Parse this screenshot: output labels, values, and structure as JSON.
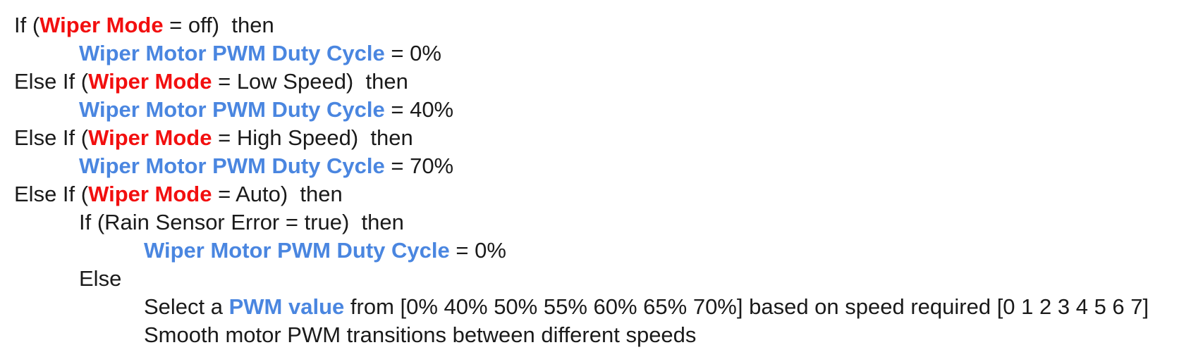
{
  "colors": {
    "wiper_mode": "#f20f0f",
    "pwm_keyword": "#4a86e0",
    "text": "#1a1a1a"
  },
  "lines": [
    {
      "indent": 0,
      "segments": [
        {
          "text": "If (",
          "style": "plain"
        },
        {
          "text": "Wiper Mode",
          "style": "red"
        },
        {
          "text": " = off)  then",
          "style": "plain"
        }
      ]
    },
    {
      "indent": 1,
      "segments": [
        {
          "text": "Wiper Motor PWM Duty Cycle",
          "style": "blue"
        },
        {
          "text": " = 0%",
          "style": "plain"
        }
      ]
    },
    {
      "indent": 0,
      "segments": [
        {
          "text": "Else If (",
          "style": "plain"
        },
        {
          "text": "Wiper Mode",
          "style": "red"
        },
        {
          "text": " = Low Speed)  then",
          "style": "plain"
        }
      ]
    },
    {
      "indent": 1,
      "segments": [
        {
          "text": "Wiper Motor PWM Duty Cycle",
          "style": "blue"
        },
        {
          "text": " = 40%",
          "style": "plain"
        }
      ]
    },
    {
      "indent": 0,
      "segments": [
        {
          "text": "Else If (",
          "style": "plain"
        },
        {
          "text": "Wiper Mode",
          "style": "red"
        },
        {
          "text": " = High Speed)  then",
          "style": "plain"
        }
      ]
    },
    {
      "indent": 1,
      "segments": [
        {
          "text": "Wiper Motor PWM Duty Cycle",
          "style": "blue"
        },
        {
          "text": " = 70%",
          "style": "plain"
        }
      ]
    },
    {
      "indent": 0,
      "segments": [
        {
          "text": "Else If (",
          "style": "plain"
        },
        {
          "text": "Wiper Mode",
          "style": "red"
        },
        {
          "text": " = Auto)  then",
          "style": "plain"
        }
      ]
    },
    {
      "indent": 1,
      "segments": [
        {
          "text": "If (Rain Sensor Error = true)  then",
          "style": "plain"
        }
      ]
    },
    {
      "indent": 2,
      "segments": [
        {
          "text": "Wiper Motor PWM Duty Cycle",
          "style": "blue"
        },
        {
          "text": " = 0%",
          "style": "plain"
        }
      ]
    },
    {
      "indent": 1,
      "segments": [
        {
          "text": "Else",
          "style": "plain"
        }
      ]
    },
    {
      "indent": 2,
      "segments": [
        {
          "text": "Select a ",
          "style": "plain"
        },
        {
          "text": "PWM value",
          "style": "blue"
        },
        {
          "text": " from [0% 40% 50% 55% 60% 65% 70%] based on speed required [0 1 2 3 4 5 6 7]",
          "style": "plain"
        }
      ]
    },
    {
      "indent": 2,
      "segments": [
        {
          "text": "Smooth motor PWM transitions between different speeds",
          "style": "plain"
        }
      ]
    }
  ]
}
